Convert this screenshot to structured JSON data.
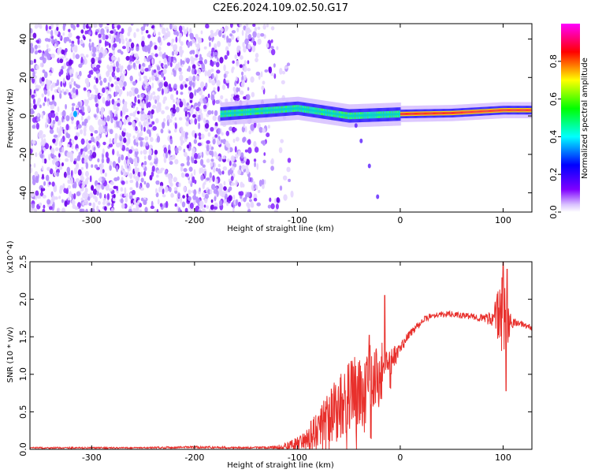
{
  "title": "C2E6.2024.109.02.50.G17",
  "colors": {
    "snr_line": "#e8302c",
    "axes": "#000000",
    "background": "#ffffff",
    "spectrum_palette": [
      "#ffffff",
      "#7f00ff",
      "#0000ff",
      "#00ffff",
      "#00ff00",
      "#ffff00",
      "#ff0000",
      "#ff00ff"
    ]
  },
  "chart_data": [
    {
      "type": "heatmap",
      "xlabel": "Height of straight line (km)",
      "ylabel": "Frequency (Hz)",
      "xlim": [
        -360,
        128
      ],
      "ylim": [
        -50,
        48
      ],
      "xticks": [
        "-300",
        "-200",
        "-100",
        "0",
        "100"
      ],
      "xtick_values": [
        -300,
        -200,
        -100,
        0,
        100
      ],
      "yticks": [
        "-40",
        "-20",
        "0",
        "20",
        "40"
      ],
      "ytick_values": [
        -40,
        -20,
        0,
        20,
        40
      ],
      "colorbar": {
        "label": "Normalized spectral amplitude",
        "range": [
          0,
          1
        ],
        "ticks": [
          "0.0",
          "0.2",
          "0.4",
          "0.6",
          "0.8"
        ],
        "tick_values": [
          0,
          0.2,
          0.4,
          0.6,
          0.8
        ],
        "colormap": "rainbow (white-violet-blue-cyan-green-yellow-red-magenta)"
      },
      "description_regions": {
        "noise_region_x": [
          -360,
          -130
        ],
        "signal_band_x": [
          -175,
          128
        ],
        "signal_frequency_hz": [
          -10,
          10
        ],
        "signal_center_frequency_hz_at": [
          [
            -175,
            1
          ],
          [
            -100,
            4
          ],
          [
            -50,
            0
          ],
          [
            0,
            1
          ],
          [
            50,
            1.5
          ],
          [
            100,
            3
          ],
          [
            128,
            3
          ]
        ]
      }
    },
    {
      "type": "line",
      "xlabel": "Height of straight line (km)",
      "ylabel": "SNR (10 * v/v)",
      "yscale_label": "(x10^4)",
      "xlim": [
        -360,
        128
      ],
      "ylim": [
        0,
        2.5
      ],
      "xticks": [
        "-300",
        "-200",
        "-100",
        "0",
        "100"
      ],
      "xtick_values": [
        -300,
        -200,
        -100,
        0,
        100
      ],
      "yticks": [
        "0.0",
        "0.5",
        "1.0",
        "1.5",
        "2.0",
        "2.5"
      ],
      "ytick_values": [
        0,
        0.5,
        1.0,
        1.5,
        2.0,
        2.5
      ],
      "series": [
        {
          "color": "#e8302c",
          "x": [
            -360,
            -300,
            -250,
            -200,
            -150,
            -120,
            -110,
            -100,
            -90,
            -80,
            -70,
            -60,
            -50,
            -40,
            -30,
            -20,
            -15,
            -10,
            -5,
            0,
            10,
            20,
            30,
            40,
            50,
            60,
            70,
            80,
            90,
            100,
            105,
            110,
            120,
            128
          ],
          "y": [
            0.02,
            0.02,
            0.02,
            0.03,
            0.02,
            0.03,
            0.05,
            0.08,
            0.15,
            0.3,
            0.4,
            0.55,
            0.7,
            0.8,
            0.9,
            1.0,
            1.1,
            1.15,
            1.25,
            1.35,
            1.55,
            1.7,
            1.78,
            1.8,
            1.8,
            1.78,
            1.77,
            1.75,
            1.75,
            1.8,
            1.7,
            1.7,
            1.66,
            1.62
          ],
          "noise_amplitude": [
            0.01,
            0.01,
            0.01,
            0.015,
            0.01,
            0.02,
            0.05,
            0.1,
            0.15,
            0.25,
            0.35,
            0.45,
            0.5,
            0.55,
            0.5,
            0.45,
            0.35,
            0.25,
            0.12,
            0.08,
            0.06,
            0.05,
            0.04,
            0.04,
            0.04,
            0.04,
            0.04,
            0.05,
            0.12,
            0.6,
            0.3,
            0.05,
            0.04,
            0.04
          ],
          "peaks": [
            [
              -15,
              2.05
            ],
            [
              -30,
              1.52
            ],
            [
              100,
              2.5
            ],
            [
              104,
              2.4
            ],
            [
              103,
              0.78
            ]
          ]
        }
      ]
    }
  ]
}
